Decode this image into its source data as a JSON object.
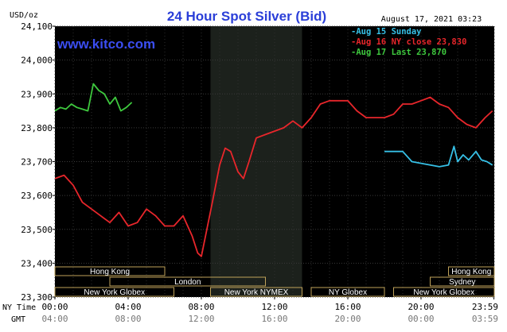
{
  "chart_data": {
    "type": "line",
    "title": "24 Hour Spot Silver (Bid)",
    "brand": "www.kitco.com",
    "ylabel": "USD/oz",
    "date_stamp": "August 17, 2021 03:23",
    "ylim": [
      23300,
      24100
    ],
    "y_ticks": [
      23300,
      23400,
      23500,
      23600,
      23700,
      23800,
      23900,
      24000,
      24100
    ],
    "y_tick_labels": [
      "23,300",
      "23,400",
      "23,500",
      "23,600",
      "23,700",
      "23,800",
      "23,900",
      "24,000",
      "24,100"
    ],
    "x_row_labels": [
      "NY Time",
      "GMT"
    ],
    "x_ticks_ny": [
      "00:00",
      "04:00",
      "08:00",
      "12:00",
      "16:00",
      "20:00",
      "23:59"
    ],
    "x_ticks_gmt": [
      "04:00",
      "08:00",
      "12:00",
      "16:00",
      "20:00",
      "00:00",
      "03:59"
    ],
    "sessions": [
      {
        "label": "Hong Kong",
        "start": 0,
        "end": 6.0
      },
      {
        "label": "London",
        "start": 3.0,
        "end": 11.5
      },
      {
        "label": "New York Globex",
        "start": 0,
        "end": 6.5
      },
      {
        "label": "New York NYMEX",
        "start": 8.5,
        "end": 13.5
      },
      {
        "label": "NY Globex",
        "start": 14.0,
        "end": 18.0
      },
      {
        "label": "Hong Kong",
        "start": 21.5,
        "end": 24.0
      },
      {
        "label": "Sydney",
        "start": 20.5,
        "end": 24.0
      },
      {
        "label": "New York Globex",
        "start": 18.5,
        "end": 24.0
      }
    ],
    "shaded_period": [
      8.5,
      13.5
    ],
    "series": [
      {
        "name": "Aug 15 Sunday",
        "color": "#36c0e6",
        "x": [
          18.0,
          19.0,
          19.5,
          20.0,
          20.5,
          21.0,
          21.5,
          21.8,
          22.0,
          22.3,
          22.6,
          23.0,
          23.3,
          23.6,
          23.9
        ],
        "values": [
          23730,
          23730,
          23700,
          23695,
          23690,
          23685,
          23690,
          23745,
          23700,
          23720,
          23705,
          23730,
          23705,
          23700,
          23690
        ]
      },
      {
        "name": "Aug 16 NY close 23,830",
        "color": "#e8262b",
        "x": [
          0.0,
          0.5,
          1.0,
          1.5,
          2.0,
          2.5,
          3.0,
          3.5,
          4.0,
          4.5,
          5.0,
          5.5,
          6.0,
          6.5,
          7.0,
          7.5,
          7.8,
          8.0,
          8.3,
          8.6,
          9.0,
          9.3,
          9.6,
          10.0,
          10.3,
          10.6,
          11.0,
          11.5,
          12.0,
          12.5,
          13.0,
          13.5,
          14.0,
          14.5,
          15.0,
          15.5,
          16.0,
          16.5,
          17.0,
          17.5,
          18.0,
          18.5,
          19.0,
          19.5,
          20.0,
          20.5,
          21.0,
          21.5,
          22.0,
          22.5,
          23.0,
          23.5,
          23.9
        ],
        "values": [
          23650,
          23660,
          23630,
          23580,
          23560,
          23540,
          23520,
          23550,
          23510,
          23520,
          23560,
          23540,
          23510,
          23510,
          23540,
          23480,
          23430,
          23420,
          23500,
          23580,
          23690,
          23740,
          23730,
          23670,
          23650,
          23700,
          23770,
          23780,
          23790,
          23800,
          23820,
          23800,
          23830,
          23870,
          23880,
          23880,
          23880,
          23850,
          23830,
          23830,
          23830,
          23840,
          23870,
          23870,
          23880,
          23890,
          23870,
          23860,
          23830,
          23810,
          23800,
          23830,
          23850
        ]
      },
      {
        "name": "Aug 17 Last 23,870",
        "color": "#3ec83e",
        "x": [
          0.0,
          0.3,
          0.6,
          0.9,
          1.2,
          1.5,
          1.8,
          2.1,
          2.4,
          2.7,
          3.0,
          3.3,
          3.6,
          3.9,
          4.2
        ],
        "values": [
          23850,
          23860,
          23855,
          23870,
          23860,
          23855,
          23850,
          23930,
          23910,
          23900,
          23870,
          23890,
          23850,
          23860,
          23875
        ]
      }
    ]
  }
}
